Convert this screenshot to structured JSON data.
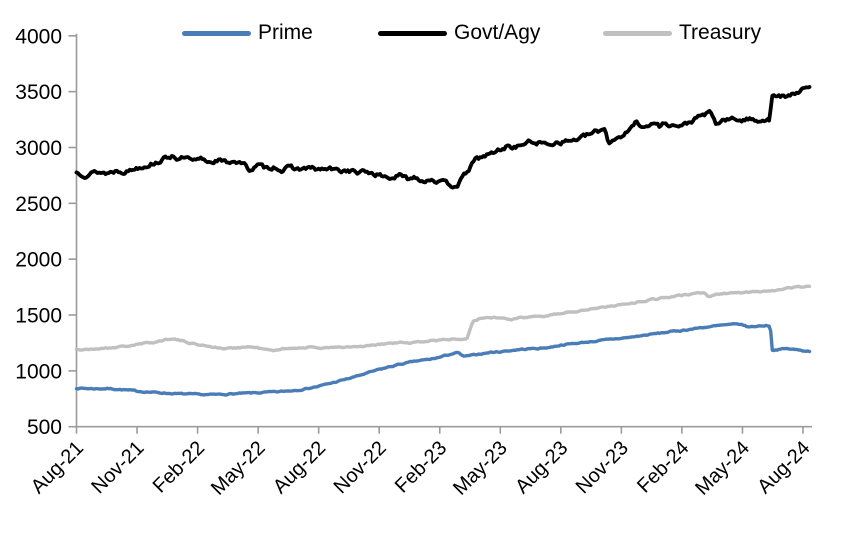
{
  "chart_data": {
    "type": "line",
    "title": "",
    "xlabel": "",
    "ylabel": "",
    "legend_position": "top",
    "grid": "off",
    "axis_color": "#9b9b9b",
    "text_color": "#000000",
    "y_axis": {
      "range": [
        500,
        4000
      ],
      "tick_step": 500,
      "ticks": [
        500,
        1000,
        1500,
        2000,
        2500,
        3000,
        3500,
        4000
      ]
    },
    "x_axis": {
      "unit": "t = months since Aug-2021",
      "tick_interval_months": 3,
      "tick_labels": [
        "Aug-21",
        "Nov-21",
        "Feb-22",
        "May-22",
        "Aug-22",
        "Nov-22",
        "Feb-23",
        "May-23",
        "Aug-23",
        "Nov-23",
        "Feb-24",
        "May-24",
        "Aug-24"
      ]
    },
    "series": [
      {
        "name": "Prime",
        "color": "#4a7db8",
        "points": [
          [
            0,
            845
          ],
          [
            0.5,
            842
          ],
          [
            1,
            840
          ],
          [
            1.5,
            842
          ],
          [
            2,
            836
          ],
          [
            2.5,
            828
          ],
          [
            3,
            818
          ],
          [
            3.5,
            812
          ],
          [
            4,
            806
          ],
          [
            4.5,
            800
          ],
          [
            5,
            795
          ],
          [
            5.5,
            792
          ],
          [
            6,
            788
          ],
          [
            6.5,
            786
          ],
          [
            7,
            788
          ],
          [
            7.5,
            792
          ],
          [
            8,
            796
          ],
          [
            8.5,
            800
          ],
          [
            9,
            804
          ],
          [
            9.5,
            808
          ],
          [
            10,
            812
          ],
          [
            10.5,
            820
          ],
          [
            11,
            830
          ],
          [
            11.5,
            845
          ],
          [
            12,
            862
          ],
          [
            12.5,
            885
          ],
          [
            13,
            908
          ],
          [
            13.5,
            932
          ],
          [
            14,
            958
          ],
          [
            14.5,
            985
          ],
          [
            15,
            1012
          ],
          [
            15.5,
            1035
          ],
          [
            16,
            1058
          ],
          [
            16.5,
            1075
          ],
          [
            17,
            1092
          ],
          [
            17.5,
            1102
          ],
          [
            18,
            1122
          ],
          [
            18.5,
            1148
          ],
          [
            18.9,
            1162
          ],
          [
            19.2,
            1128
          ],
          [
            19.6,
            1138
          ],
          [
            20,
            1152
          ],
          [
            20.5,
            1165
          ],
          [
            21,
            1172
          ],
          [
            21.5,
            1182
          ],
          [
            22,
            1192
          ],
          [
            22.5,
            1198
          ],
          [
            23,
            1202
          ],
          [
            23.5,
            1212
          ],
          [
            24,
            1232
          ],
          [
            24.5,
            1242
          ],
          [
            25,
            1252
          ],
          [
            25.5,
            1262
          ],
          [
            26,
            1272
          ],
          [
            26.5,
            1282
          ],
          [
            27,
            1292
          ],
          [
            27.5,
            1302
          ],
          [
            28,
            1315
          ],
          [
            28.5,
            1328
          ],
          [
            29,
            1340
          ],
          [
            29.5,
            1352
          ],
          [
            30,
            1362
          ],
          [
            30.5,
            1375
          ],
          [
            31,
            1388
          ],
          [
            31.5,
            1398
          ],
          [
            32,
            1408
          ],
          [
            32.5,
            1415
          ],
          [
            32.9,
            1418
          ],
          [
            33.3,
            1392
          ],
          [
            33.6,
            1398
          ],
          [
            34,
            1405
          ],
          [
            34.38,
            1406
          ],
          [
            34.48,
            1186
          ],
          [
            34.8,
            1192
          ],
          [
            35.2,
            1198
          ],
          [
            35.6,
            1190
          ],
          [
            36,
            1182
          ],
          [
            36.35,
            1176
          ]
        ]
      },
      {
        "name": "Govt/Agy",
        "color": "#000000",
        "points": [
          [
            0,
            2775
          ],
          [
            0.4,
            2760
          ],
          [
            1,
            2782
          ],
          [
            1.5,
            2770
          ],
          [
            2,
            2795
          ],
          [
            2.5,
            2788
          ],
          [
            3,
            2820
          ],
          [
            3.5,
            2845
          ],
          [
            4,
            2872
          ],
          [
            4.8,
            2932
          ],
          [
            5.1,
            2890
          ],
          [
            5.4,
            2910
          ],
          [
            5.8,
            2868
          ],
          [
            6.2,
            2895
          ],
          [
            6.6,
            2870
          ],
          [
            7,
            2892
          ],
          [
            7.4,
            2862
          ],
          [
            7.8,
            2885
          ],
          [
            8.2,
            2858
          ],
          [
            8.6,
            2800
          ],
          [
            9,
            2838
          ],
          [
            9.4,
            2810
          ],
          [
            9.8,
            2830
          ],
          [
            10.2,
            2798
          ],
          [
            10.6,
            2820
          ],
          [
            11,
            2805
          ],
          [
            11.5,
            2815
          ],
          [
            12,
            2800
          ],
          [
            12.5,
            2808
          ],
          [
            13,
            2790
          ],
          [
            13.5,
            2795
          ],
          [
            14,
            2772
          ],
          [
            14.4,
            2782
          ],
          [
            14.8,
            2762
          ],
          [
            15.2,
            2742
          ],
          [
            15.6,
            2728
          ],
          [
            16,
            2748
          ],
          [
            16.4,
            2718
          ],
          [
            16.8,
            2738
          ],
          [
            17.2,
            2702
          ],
          [
            17.6,
            2722
          ],
          [
            18,
            2690
          ],
          [
            18.3,
            2675
          ],
          [
            18.6,
            2658
          ],
          [
            18.9,
            2672
          ],
          [
            19.2,
            2742
          ],
          [
            19.5,
            2820
          ],
          [
            19.8,
            2895
          ],
          [
            20.1,
            2915
          ],
          [
            20.4,
            2935
          ],
          [
            20.7,
            2955
          ],
          [
            21,
            2982
          ],
          [
            21.4,
            3015
          ],
          [
            21.8,
            3002
          ],
          [
            22.2,
            3040
          ],
          [
            22.6,
            3050
          ],
          [
            23,
            3042
          ],
          [
            23.3,
            3025
          ],
          [
            23.7,
            3048
          ],
          [
            24,
            3052
          ],
          [
            24.5,
            3062
          ],
          [
            25,
            3085
          ],
          [
            25.5,
            3122
          ],
          [
            25.9,
            3148
          ],
          [
            26.2,
            3172
          ],
          [
            26.35,
            3048
          ],
          [
            26.7,
            3080
          ],
          [
            27,
            3108
          ],
          [
            27.4,
            3148
          ],
          [
            27.7,
            3228
          ],
          [
            28,
            3205
          ],
          [
            28.3,
            3180
          ],
          [
            28.6,
            3222
          ],
          [
            28.9,
            3192
          ],
          [
            29.2,
            3220
          ],
          [
            29.6,
            3198
          ],
          [
            30,
            3188
          ],
          [
            30.4,
            3228
          ],
          [
            30.8,
            3268
          ],
          [
            31.1,
            3295
          ],
          [
            31.4,
            3308
          ],
          [
            31.7,
            3205
          ],
          [
            32,
            3242
          ],
          [
            32.4,
            3252
          ],
          [
            33,
            3248
          ],
          [
            33.5,
            3252
          ],
          [
            34,
            3248
          ],
          [
            34.35,
            3252
          ],
          [
            34.45,
            3448
          ],
          [
            34.7,
            3462
          ],
          [
            35,
            3455
          ],
          [
            35.3,
            3452
          ],
          [
            35.7,
            3500
          ],
          [
            36,
            3518
          ],
          [
            36.35,
            3528
          ]
        ]
      },
      {
        "name": "Treasury",
        "color": "#c0c0c0",
        "points": [
          [
            0,
            1192
          ],
          [
            0.5,
            1188
          ],
          [
            1,
            1198
          ],
          [
            1.5,
            1205
          ],
          [
            2,
            1212
          ],
          [
            2.5,
            1222
          ],
          [
            3,
            1235
          ],
          [
            3.5,
            1248
          ],
          [
            4,
            1262
          ],
          [
            4.7,
            1293
          ],
          [
            5.2,
            1268
          ],
          [
            5.6,
            1252
          ],
          [
            6,
            1235
          ],
          [
            6.5,
            1225
          ],
          [
            7,
            1205
          ],
          [
            7.4,
            1198
          ],
          [
            8,
            1210
          ],
          [
            8.6,
            1215
          ],
          [
            9,
            1205
          ],
          [
            9.8,
            1175
          ],
          [
            10.2,
            1205
          ],
          [
            10.6,
            1198
          ],
          [
            11,
            1208
          ],
          [
            11.5,
            1212
          ],
          [
            12,
            1205
          ],
          [
            12.5,
            1210
          ],
          [
            13,
            1208
          ],
          [
            13.5,
            1212
          ],
          [
            14,
            1215
          ],
          [
            14.5,
            1222
          ],
          [
            15,
            1235
          ],
          [
            15.5,
            1245
          ],
          [
            16,
            1252
          ],
          [
            16.5,
            1248
          ],
          [
            17,
            1258
          ],
          [
            17.6,
            1272
          ],
          [
            18,
            1275
          ],
          [
            18.5,
            1282
          ],
          [
            19,
            1290
          ],
          [
            19.35,
            1292
          ],
          [
            19.65,
            1455
          ],
          [
            20,
            1468
          ],
          [
            20.5,
            1478
          ],
          [
            21,
            1475
          ],
          [
            21.5,
            1458
          ],
          [
            22,
            1472
          ],
          [
            22.5,
            1482
          ],
          [
            23,
            1492
          ],
          [
            23.5,
            1502
          ],
          [
            24,
            1515
          ],
          [
            24.5,
            1528
          ],
          [
            25,
            1542
          ],
          [
            25.5,
            1555
          ],
          [
            26,
            1568
          ],
          [
            26.5,
            1582
          ],
          [
            27,
            1595
          ],
          [
            27.5,
            1608
          ],
          [
            28,
            1622
          ],
          [
            28.5,
            1638
          ],
          [
            29,
            1652
          ],
          [
            29.5,
            1665
          ],
          [
            30,
            1675
          ],
          [
            30.4,
            1685
          ],
          [
            30.8,
            1700
          ],
          [
            31.1,
            1698
          ],
          [
            31.35,
            1662
          ],
          [
            31.7,
            1682
          ],
          [
            32,
            1692
          ],
          [
            32.5,
            1700
          ],
          [
            33,
            1698
          ],
          [
            33.5,
            1705
          ],
          [
            34,
            1712
          ],
          [
            34.5,
            1722
          ],
          [
            35,
            1735
          ],
          [
            35.5,
            1745
          ],
          [
            36,
            1755
          ],
          [
            36.35,
            1760
          ]
        ]
      }
    ]
  }
}
